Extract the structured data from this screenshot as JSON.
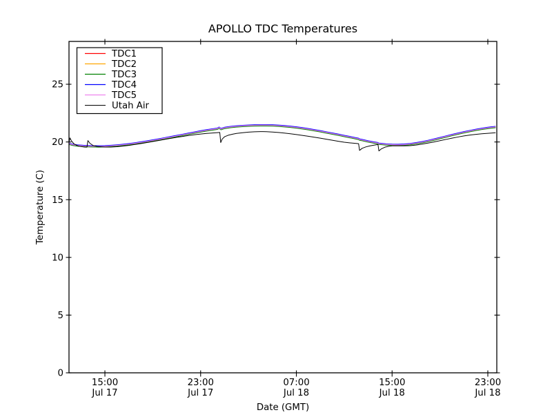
{
  "chart_data": {
    "type": "line",
    "title": "APOLLO TDC Temperatures",
    "xlabel": "Date (GMT)",
    "ylabel": "Temperature (C)",
    "grid": false,
    "legend_position": "upper left",
    "x_units": "hours since Jul 17 00:00 GMT",
    "xlim": [
      12.0,
      47.75
    ],
    "ylim": [
      0,
      28.71
    ],
    "yticks": [
      0,
      5,
      10,
      15,
      20,
      25
    ],
    "xticks": [
      {
        "t": 15,
        "line1": "15:00",
        "line2": "Jul 17"
      },
      {
        "t": 23,
        "line1": "23:00",
        "line2": "Jul 17"
      },
      {
        "t": 31,
        "line1": "07:00",
        "line2": "Jul 18"
      },
      {
        "t": 39,
        "line1": "15:00",
        "line2": "Jul 18"
      },
      {
        "t": 47,
        "line1": "23:00",
        "line2": "Jul 18"
      }
    ],
    "tdc_base_points": [
      [
        12.0,
        19.85
      ],
      [
        12.3,
        19.76
      ],
      [
        12.7,
        19.7
      ],
      [
        13.2,
        19.66
      ],
      [
        13.8,
        19.63
      ],
      [
        14.5,
        19.62
      ],
      [
        15.0,
        19.63
      ],
      [
        15.5,
        19.66
      ],
      [
        16.0,
        19.7
      ],
      [
        16.5,
        19.75
      ],
      [
        17.0,
        19.81
      ],
      [
        17.5,
        19.88
      ],
      [
        18.0,
        19.96
      ],
      [
        18.5,
        20.04
      ],
      [
        19.0,
        20.13
      ],
      [
        19.5,
        20.22
      ],
      [
        20.0,
        20.32
      ],
      [
        20.5,
        20.42
      ],
      [
        21.0,
        20.52
      ],
      [
        21.5,
        20.62
      ],
      [
        22.0,
        20.72
      ],
      [
        22.5,
        20.82
      ],
      [
        23.0,
        20.92
      ],
      [
        23.5,
        21.01
      ],
      [
        24.0,
        21.09
      ],
      [
        24.4,
        21.15
      ],
      [
        24.55,
        21.24
      ],
      [
        24.7,
        21.12
      ],
      [
        25.0,
        21.22
      ],
      [
        25.5,
        21.3
      ],
      [
        26.0,
        21.35
      ],
      [
        26.5,
        21.39
      ],
      [
        27.0,
        21.42
      ],
      [
        27.5,
        21.44
      ],
      [
        28.0,
        21.45
      ],
      [
        28.5,
        21.45
      ],
      [
        29.0,
        21.44
      ],
      [
        29.5,
        21.41
      ],
      [
        30.0,
        21.37
      ],
      [
        30.5,
        21.32
      ],
      [
        31.0,
        21.26
      ],
      [
        31.5,
        21.19
      ],
      [
        32.0,
        21.11
      ],
      [
        32.5,
        21.02
      ],
      [
        33.0,
        20.93
      ],
      [
        33.5,
        20.83
      ],
      [
        34.0,
        20.73
      ],
      [
        34.5,
        20.63
      ],
      [
        35.0,
        20.52
      ],
      [
        35.5,
        20.42
      ],
      [
        36.0,
        20.31
      ],
      [
        36.2,
        20.27
      ],
      [
        36.28,
        20.21
      ],
      [
        36.5,
        20.17
      ],
      [
        37.0,
        20.05
      ],
      [
        37.5,
        19.95
      ],
      [
        37.78,
        19.91
      ],
      [
        37.88,
        19.85
      ],
      [
        38.0,
        19.84
      ],
      [
        38.5,
        19.79
      ],
      [
        39.0,
        19.76
      ],
      [
        39.5,
        19.75
      ],
      [
        40.0,
        19.77
      ],
      [
        40.5,
        19.82
      ],
      [
        41.0,
        19.89
      ],
      [
        41.5,
        19.98
      ],
      [
        42.0,
        20.09
      ],
      [
        42.5,
        20.21
      ],
      [
        43.0,
        20.34
      ],
      [
        43.5,
        20.47
      ],
      [
        44.0,
        20.6
      ],
      [
        44.5,
        20.72
      ],
      [
        45.0,
        20.84
      ],
      [
        45.5,
        20.95
      ],
      [
        46.0,
        21.05
      ],
      [
        46.5,
        21.14
      ],
      [
        47.0,
        21.22
      ],
      [
        47.3,
        21.26
      ],
      [
        47.65,
        21.3
      ]
    ],
    "series": [
      {
        "name": "TDC1",
        "color": "#ff0000",
        "offset": -0.01
      },
      {
        "name": "TDC2",
        "color": "#ffa500",
        "offset": -0.04
      },
      {
        "name": "TDC3",
        "color": "#008000",
        "offset": -0.06
      },
      {
        "name": "TDC4",
        "color": "#0000ff",
        "offset": 0.05
      },
      {
        "name": "TDC5",
        "color": "#ee82ee",
        "offset": 0.0
      },
      {
        "name": "Utah Air",
        "color": "#000000",
        "offset": 0.0,
        "points": [
          [
            12.0,
            19.92
          ],
          [
            12.08,
            20.35
          ],
          [
            12.2,
            20.1
          ],
          [
            12.4,
            19.85
          ],
          [
            12.7,
            19.68
          ],
          [
            13.0,
            19.6
          ],
          [
            13.3,
            19.56
          ],
          [
            13.5,
            19.55
          ],
          [
            13.58,
            20.12
          ],
          [
            13.75,
            19.88
          ],
          [
            14.0,
            19.7
          ],
          [
            14.4,
            19.6
          ],
          [
            15.0,
            19.56
          ],
          [
            15.5,
            19.56
          ],
          [
            16.0,
            19.59
          ],
          [
            16.5,
            19.64
          ],
          [
            17.0,
            19.7
          ],
          [
            17.5,
            19.78
          ],
          [
            18.0,
            19.86
          ],
          [
            18.5,
            19.95
          ],
          [
            19.0,
            20.04
          ],
          [
            19.5,
            20.13
          ],
          [
            20.0,
            20.22
          ],
          [
            20.5,
            20.31
          ],
          [
            21.0,
            20.4
          ],
          [
            21.5,
            20.48
          ],
          [
            22.0,
            20.56
          ],
          [
            22.5,
            20.63
          ],
          [
            23.0,
            20.69
          ],
          [
            23.5,
            20.74
          ],
          [
            24.0,
            20.78
          ],
          [
            24.3,
            20.8
          ],
          [
            24.6,
            20.82
          ],
          [
            24.68,
            19.95
          ],
          [
            24.8,
            20.25
          ],
          [
            25.0,
            20.45
          ],
          [
            25.3,
            20.58
          ],
          [
            25.7,
            20.68
          ],
          [
            26.0,
            20.74
          ],
          [
            26.5,
            20.8
          ],
          [
            27.0,
            20.85
          ],
          [
            27.5,
            20.88
          ],
          [
            28.0,
            20.9
          ],
          [
            28.5,
            20.89
          ],
          [
            29.0,
            20.86
          ],
          [
            29.5,
            20.82
          ],
          [
            30.0,
            20.77
          ],
          [
            30.5,
            20.71
          ],
          [
            31.0,
            20.64
          ],
          [
            31.5,
            20.57
          ],
          [
            32.0,
            20.49
          ],
          [
            32.5,
            20.41
          ],
          [
            33.0,
            20.33
          ],
          [
            33.5,
            20.24
          ],
          [
            34.0,
            20.15
          ],
          [
            34.5,
            20.06
          ],
          [
            35.0,
            19.98
          ],
          [
            35.5,
            19.92
          ],
          [
            36.0,
            19.87
          ],
          [
            36.2,
            19.85
          ],
          [
            36.28,
            19.27
          ],
          [
            36.5,
            19.45
          ],
          [
            36.8,
            19.57
          ],
          [
            37.1,
            19.65
          ],
          [
            37.4,
            19.71
          ],
          [
            37.7,
            19.76
          ],
          [
            37.82,
            19.78
          ],
          [
            37.9,
            19.22
          ],
          [
            38.1,
            19.4
          ],
          [
            38.4,
            19.55
          ],
          [
            38.7,
            19.62
          ],
          [
            39.0,
            19.66
          ],
          [
            39.5,
            19.67
          ],
          [
            40.0,
            19.66
          ],
          [
            40.5,
            19.68
          ],
          [
            41.0,
            19.73
          ],
          [
            41.5,
            19.81
          ],
          [
            42.0,
            19.9
          ],
          [
            42.5,
            20.0
          ],
          [
            43.0,
            20.11
          ],
          [
            43.5,
            20.22
          ],
          [
            44.0,
            20.33
          ],
          [
            44.5,
            20.43
          ],
          [
            45.0,
            20.52
          ],
          [
            45.5,
            20.6
          ],
          [
            46.0,
            20.66
          ],
          [
            46.5,
            20.71
          ],
          [
            47.0,
            20.75
          ],
          [
            47.65,
            20.8
          ]
        ]
      }
    ]
  }
}
